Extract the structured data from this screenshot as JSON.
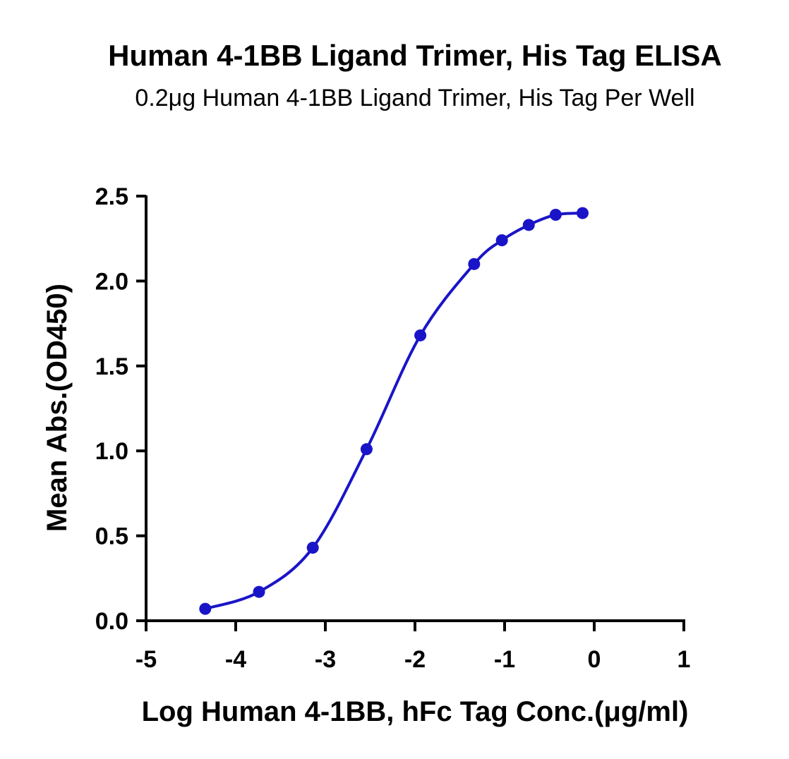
{
  "chart_data": {
    "type": "scatter",
    "title": "Human 4-1BB Ligand Trimer, His Tag ELISA",
    "subtitle": "0.2μg Human 4-1BB Ligand Trimer, His Tag Per Well",
    "xlabel": "Log Human 4-1BB, hFc Tag Conc.(μg/ml)",
    "ylabel": "Mean Abs.(OD450)",
    "xlim": [
      -5,
      1
    ],
    "ylim": [
      0,
      2.5
    ],
    "x_ticks": [
      "-5",
      "-4",
      "-3",
      "-2",
      "-1",
      "0",
      "1"
    ],
    "y_ticks": [
      "0.0",
      "0.5",
      "1.0",
      "1.5",
      "2.0",
      "2.5"
    ],
    "grid": false,
    "color": "#1a14c8",
    "series": [
      {
        "x": [
          -4.34,
          -3.74,
          -3.14,
          -2.54,
          -1.94,
          -1.34,
          -1.03,
          -0.73,
          -0.43,
          -0.13
        ],
        "y": [
          0.07,
          0.17,
          0.43,
          1.01,
          1.68,
          2.1,
          2.24,
          2.33,
          2.39,
          2.4
        ]
      }
    ]
  }
}
